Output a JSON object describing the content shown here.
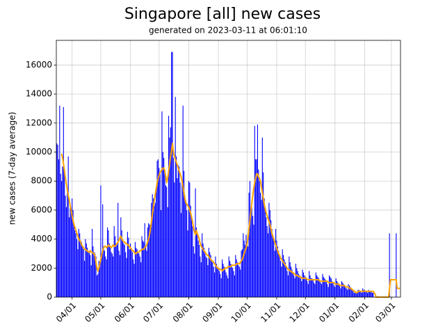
{
  "chart_data": {
    "type": "bar",
    "title": "Singapore [all] new cases",
    "subtitle": "generated on 2023-03-11 at 06:01:10",
    "ylabel": "new cases (7-day average)",
    "grid": true,
    "ylim": [
      0,
      17700
    ],
    "yticks": [
      0,
      2000,
      4000,
      6000,
      8000,
      10000,
      12000,
      14000,
      16000
    ],
    "xticks": [
      "04/01",
      "05/01",
      "06/01",
      "07/01",
      "08/01",
      "09/01",
      "10/01",
      "11/01",
      "12/01",
      "01/01",
      "02/01",
      "03/01"
    ],
    "categories": [
      "03/16",
      "03/17",
      "03/18",
      "03/19",
      "03/20",
      "03/21",
      "03/22",
      "03/23",
      "03/24",
      "03/25",
      "03/26",
      "03/27",
      "03/28",
      "03/29",
      "03/30",
      "03/31",
      "04/01",
      "04/02",
      "04/03",
      "04/04",
      "04/05",
      "04/06",
      "04/07",
      "04/08",
      "04/09",
      "04/10",
      "04/11",
      "04/12",
      "04/13",
      "04/14",
      "04/15",
      "04/16",
      "04/17",
      "04/18",
      "04/19",
      "04/20",
      "04/21",
      "04/22",
      "04/23",
      "04/24",
      "04/25",
      "04/26",
      "04/27",
      "04/28",
      "04/29",
      "04/30",
      "05/01",
      "05/02",
      "05/03",
      "05/04",
      "05/05",
      "05/06",
      "05/07",
      "05/08",
      "05/09",
      "05/10",
      "05/11",
      "05/12",
      "05/13",
      "05/14",
      "05/15",
      "05/16",
      "05/17",
      "05/18",
      "05/19",
      "05/20",
      "05/21",
      "05/22",
      "05/23",
      "05/24",
      "05/25",
      "05/26",
      "05/27",
      "05/28",
      "05/29",
      "05/30",
      "05/31",
      "06/01",
      "06/02",
      "06/03",
      "06/04",
      "06/05",
      "06/06",
      "06/07",
      "06/08",
      "06/09",
      "06/10",
      "06/11",
      "06/12",
      "06/13",
      "06/14",
      "06/15",
      "06/16",
      "06/17",
      "06/18",
      "06/19",
      "06/20",
      "06/21",
      "06/22",
      "06/23",
      "06/24",
      "06/25",
      "06/26",
      "06/27",
      "06/28",
      "06/29",
      "06/30",
      "07/01",
      "07/02",
      "07/03",
      "07/04",
      "07/05",
      "07/06",
      "07/07",
      "07/08",
      "07/09",
      "07/10",
      "07/11",
      "07/12",
      "07/13",
      "07/14",
      "07/15",
      "07/16",
      "07/17",
      "07/18",
      "07/19",
      "07/20",
      "07/21",
      "07/22",
      "07/23",
      "07/24",
      "07/25",
      "07/26",
      "07/27",
      "07/28",
      "07/29",
      "07/30",
      "07/31",
      "08/01",
      "08/02",
      "08/03",
      "08/04",
      "08/05",
      "08/06",
      "08/07",
      "08/08",
      "08/09",
      "08/10",
      "08/11",
      "08/12",
      "08/13",
      "08/14",
      "08/15",
      "08/16",
      "08/17",
      "08/18",
      "08/19",
      "08/20",
      "08/21",
      "08/22",
      "08/23",
      "08/24",
      "08/25",
      "08/26",
      "08/27",
      "08/28",
      "08/29",
      "08/30",
      "08/31",
      "09/01",
      "09/02",
      "09/03",
      "09/04",
      "09/05",
      "09/06",
      "09/07",
      "09/08",
      "09/09",
      "09/10",
      "09/11",
      "09/12",
      "09/13",
      "09/14",
      "09/15",
      "09/16",
      "09/17",
      "09/18",
      "09/19",
      "09/20",
      "09/21",
      "09/22",
      "09/23",
      "09/24",
      "09/25",
      "09/26",
      "09/27",
      "09/28",
      "09/29",
      "09/30",
      "10/01",
      "10/02",
      "10/03",
      "10/04",
      "10/05",
      "10/06",
      "10/07",
      "10/08",
      "10/09",
      "10/10",
      "10/11",
      "10/12",
      "10/13",
      "10/14",
      "10/15",
      "10/16",
      "10/17",
      "10/18",
      "10/19",
      "10/20",
      "10/21",
      "10/22",
      "10/23",
      "10/24",
      "10/25",
      "10/26",
      "10/27",
      "10/28",
      "10/29",
      "10/30",
      "10/31",
      "11/01",
      "11/02",
      "11/03",
      "11/04",
      "11/05",
      "11/06",
      "11/07",
      "11/08",
      "11/09",
      "11/10",
      "11/11",
      "11/12",
      "11/13",
      "11/14",
      "11/15",
      "11/16",
      "11/17",
      "11/18",
      "11/19",
      "11/20",
      "11/21",
      "11/22",
      "11/23",
      "11/24",
      "11/25",
      "11/26",
      "11/27",
      "11/28",
      "11/29",
      "11/30",
      "12/01",
      "12/02",
      "12/03",
      "12/04",
      "12/05",
      "12/06",
      "12/07",
      "12/08",
      "12/09",
      "12/10",
      "12/11",
      "12/12",
      "12/13",
      "12/14",
      "12/15",
      "12/16",
      "12/17",
      "12/18",
      "12/19",
      "12/20",
      "12/21",
      "12/22",
      "12/23",
      "12/24",
      "12/25",
      "12/26",
      "12/27",
      "12/28",
      "12/29",
      "12/30",
      "12/31",
      "01/01",
      "01/02",
      "01/03",
      "01/04",
      "01/05",
      "01/06",
      "01/07",
      "01/08",
      "01/09",
      "01/10",
      "01/11",
      "01/12",
      "01/13",
      "01/14",
      "01/15",
      "01/16",
      "01/17",
      "01/18",
      "01/19",
      "01/20",
      "01/21",
      "01/22",
      "01/23",
      "01/24",
      "01/25",
      "01/26",
      "01/27",
      "01/28",
      "01/29",
      "01/30",
      "01/31",
      "02/01",
      "02/02",
      "02/03",
      "02/04",
      "02/05",
      "02/06",
      "02/07",
      "02/08",
      "02/09",
      "02/10",
      "02/11",
      "02/12",
      "02/13",
      "02/14",
      "02/15",
      "02/16",
      "02/17",
      "02/18",
      "02/19",
      "02/20",
      "02/21",
      "02/22",
      "02/23",
      "02/24",
      "02/25",
      "02/26",
      "02/27",
      "02/28",
      "03/01",
      "03/02",
      "03/03",
      "03/04",
      "03/05",
      "03/06",
      "03/07",
      "03/08",
      "03/09",
      "03/10"
    ],
    "series": [
      {
        "type": "bar",
        "color": "#0000ff",
        "values": [
          10600,
          10500,
          9500,
          13200,
          8500,
          8000,
          9000,
          13100,
          8700,
          7000,
          6200,
          7500,
          9700,
          5500,
          6500,
          5800,
          6800,
          6000,
          4900,
          4600,
          4400,
          4000,
          3300,
          4700,
          4400,
          3900,
          3800,
          3500,
          3300,
          2500,
          4000,
          3700,
          3400,
          3100,
          3200,
          2900,
          2200,
          4700,
          3500,
          3100,
          3000,
          2800,
          1500,
          1600,
          2500,
          2400,
          7700,
          3000,
          6400,
          3500,
          3200,
          2800,
          2600,
          4800,
          4600,
          3700,
          3400,
          3100,
          3000,
          2800,
          4900,
          4200,
          3700,
          3600,
          6500,
          3200,
          2900,
          5500,
          4600,
          4000,
          3700,
          3600,
          3100,
          2700,
          4500,
          4100,
          3300,
          3700,
          3400,
          3100,
          2600,
          2300,
          3800,
          3400,
          3300,
          3100,
          3000,
          2800,
          2400,
          4200,
          3900,
          3800,
          5100,
          3500,
          3200,
          4800,
          5100,
          5000,
          5000,
          6500,
          7100,
          6800,
          6300,
          6500,
          7500,
          9400,
          9500,
          8900,
          8500,
          6000,
          12800,
          10000,
          9600,
          8800,
          7700,
          7600,
          6200,
          12500,
          11000,
          11700,
          16900,
          16900,
          9600,
          7900,
          13800,
          9700,
          8200,
          9100,
          9000,
          7900,
          5800,
          8000,
          13200,
          8700,
          7000,
          6700,
          6000,
          4600,
          8000,
          7900,
          6300,
          5500,
          4900,
          3500,
          3000,
          7500,
          4800,
          4300,
          3900,
          3600,
          2800,
          2400,
          4400,
          3700,
          3400,
          3000,
          2800,
          2700,
          2200,
          3400,
          3100,
          2900,
          2600,
          2400,
          2100,
          1700,
          2800,
          2300,
          2100,
          2000,
          1800,
          1600,
          1300,
          2600,
          2300,
          2100,
          1900,
          1700,
          1500,
          1300,
          2800,
          2500,
          2300,
          2100,
          2000,
          1800,
          1500,
          2900,
          2600,
          2400,
          2200,
          2100,
          1900,
          3200,
          3300,
          4400,
          3900,
          3600,
          4300,
          3800,
          3500,
          7200,
          8000,
          6100,
          6200,
          5600,
          5000,
          11800,
          9500,
          9500,
          11900,
          8800,
          8000,
          7200,
          6700,
          11000,
          8600,
          6800,
          6100,
          5500,
          4900,
          4400,
          6500,
          6000,
          5300,
          4700,
          4300,
          3900,
          3200,
          4700,
          3900,
          3500,
          3200,
          2900,
          2500,
          2100,
          3300,
          2900,
          2600,
          2400,
          2100,
          1800,
          1500,
          2800,
          2400,
          2100,
          1900,
          1700,
          1500,
          1300,
          2300,
          2000,
          1800,
          1600,
          1500,
          1300,
          1100,
          1900,
          1700,
          1500,
          1400,
          1300,
          1100,
          900,
          1800,
          1500,
          1300,
          1300,
          1200,
          1000,
          900,
          1700,
          1500,
          1400,
          1300,
          1200,
          1000,
          900,
          1600,
          1400,
          1300,
          1200,
          1100,
          900,
          700,
          1500,
          1400,
          1300,
          1100,
          1000,
          800,
          700,
          1300,
          1100,
          1000,
          900,
          800,
          600,
          1100,
          1000,
          900,
          800,
          700,
          600,
          500,
          900,
          800,
          700,
          600,
          500,
          400,
          300,
          300,
          300,
          300,
          500,
          500,
          400,
          400,
          300,
          600,
          500,
          500,
          400,
          400,
          300,
          500,
          400,
          400,
          400,
          300,
          300,
          0,
          0,
          0,
          0,
          0,
          0,
          0,
          0,
          0,
          0,
          0,
          0,
          0,
          0,
          0,
          0,
          4400,
          0,
          0,
          0,
          0,
          0,
          0,
          4400,
          0,
          0,
          0,
          0
        ]
      },
      {
        "type": "line",
        "color": "#ffa500",
        "values": [
          null,
          null,
          null,
          null,
          null,
          9900,
          9600,
          9200,
          8700,
          8200,
          7800,
          7400,
          7000,
          6700,
          6300,
          6000,
          5600,
          5300,
          5000,
          4800,
          4600,
          4400,
          4200,
          4000,
          3900,
          3800,
          3600,
          3500,
          3400,
          3300,
          3300,
          3200,
          3200,
          3100,
          3100,
          3200,
          3100,
          3100,
          3000,
          3000,
          2800,
          2400,
          2000,
          1800,
          2000,
          2300,
          2600,
          2900,
          3200,
          3400,
          3500,
          3500,
          3400,
          3500,
          3600,
          3500,
          3500,
          3400,
          3500,
          3600,
          3500,
          3500,
          3600,
          3700,
          3800,
          3900,
          4100,
          4200,
          4000,
          3900,
          3800,
          3800,
          3700,
          3700,
          3600,
          3600,
          3500,
          3400,
          3300,
          3200,
          3200,
          3100,
          3000,
          3000,
          3100,
          3100,
          3100,
          3200,
          3200,
          3300,
          3300,
          3300,
          3400,
          3500,
          3600,
          3800,
          4000,
          4300,
          4700,
          5200,
          5700,
          6200,
          6700,
          7100,
          7500,
          7900,
          8200,
          8400,
          8600,
          8700,
          8800,
          8900,
          8900,
          8700,
          8300,
          7900,
          8200,
          8700,
          9200,
          9700,
          10100,
          10600,
          10000,
          9700,
          9500,
          9300,
          9100,
          8900,
          8700,
          8500,
          8300,
          8000,
          7600,
          7200,
          6800,
          6500,
          6400,
          6300,
          6200,
          6000,
          5800,
          5500,
          5200,
          4800,
          4500,
          4300,
          4600,
          4400,
          4200,
          4000,
          3700,
          3500,
          3400,
          3300,
          3200,
          3100,
          3000,
          2900,
          2900,
          2800,
          2700,
          2600,
          2500,
          2500,
          2400,
          2300,
          2200,
          2100,
          2000,
          2000,
          1900,
          1900,
          1900,
          1800,
          1900,
          1900,
          2000,
          2000,
          2000,
          2100,
          2100,
          2100,
          2100,
          2200,
          2200,
          2200,
          2200,
          2200,
          2300,
          2300,
          2300,
          2300,
          2400,
          2500,
          2600,
          2800,
          3000,
          3200,
          3400,
          3700,
          4100,
          4700,
          5300,
          5900,
          6500,
          7000,
          7500,
          7900,
          8200,
          8500,
          8500,
          8300,
          8200,
          8000,
          7600,
          7200,
          6800,
          6400,
          6100,
          5800,
          5600,
          5400,
          5200,
          5000,
          4700,
          4400,
          4200,
          4000,
          3800,
          3600,
          3400,
          3200,
          3000,
          2900,
          2700,
          2600,
          2500,
          2400,
          2300,
          2200,
          2100,
          2000,
          1900,
          1900,
          1800,
          1800,
          1700,
          1700,
          1600,
          1600,
          1500,
          1500,
          1500,
          1400,
          1400,
          1400,
          1300,
          1300,
          1300,
          1300,
          1300,
          1300,
          1200,
          1200,
          1200,
          1200,
          1200,
          1200,
          1200,
          1200,
          1200,
          1200,
          1200,
          1200,
          1200,
          1100,
          1100,
          1100,
          1100,
          1100,
          1100,
          1100,
          1100,
          1100,
          1000,
          1000,
          1000,
          1000,
          1000,
          1000,
          1000,
          900,
          900,
          900,
          900,
          900,
          800,
          800,
          800,
          800,
          800,
          800,
          700,
          700,
          700,
          700,
          600,
          600,
          600,
          500,
          500,
          400,
          400,
          300,
          300,
          400,
          400,
          400,
          400,
          400,
          400,
          400,
          400,
          400,
          400,
          400,
          400,
          400,
          400,
          400,
          400,
          400,
          300,
          200,
          0,
          0,
          0,
          0,
          0,
          0,
          0,
          0,
          0,
          0,
          0,
          0,
          0,
          0,
          600,
          1200,
          1200,
          1200,
          1200,
          1200,
          1200,
          1200,
          600,
          600,
          600,
          600
        ]
      }
    ]
  }
}
